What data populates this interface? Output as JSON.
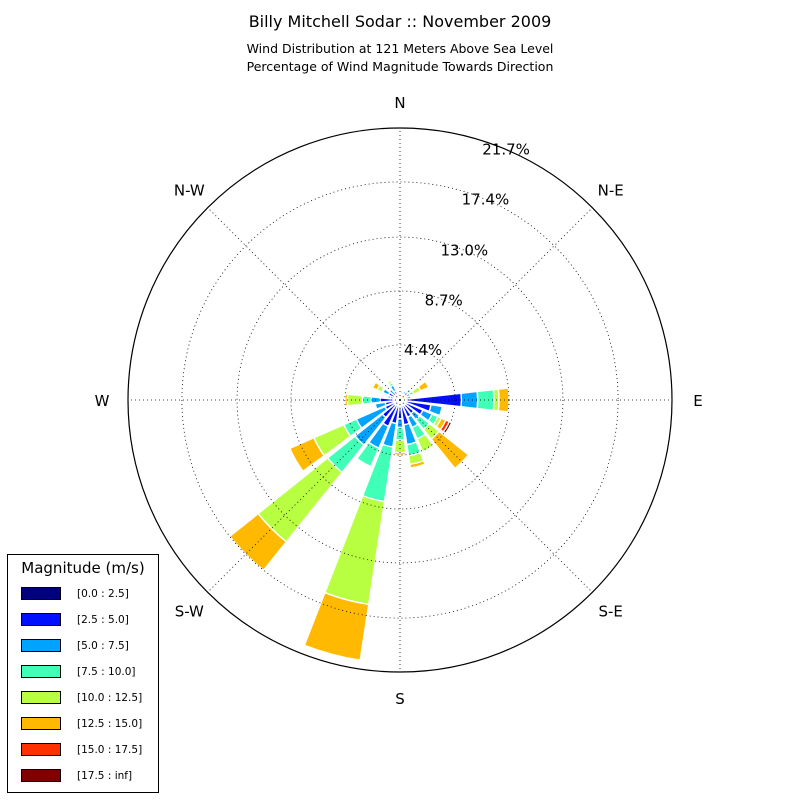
{
  "chart_data": {
    "type": "windrose",
    "title": "Billy Mitchell Sodar :: November 2009",
    "subtitle_lines": [
      "Wind Distribution at 121 Meters Above Sea Level",
      "Percentage of Wind Magnitude Towards Direction"
    ],
    "direction_labels": [
      "N",
      "N-E",
      "E",
      "S-E",
      "S",
      "S-W",
      "W",
      "N-W"
    ],
    "radial_ticks": [
      4.4,
      8.7,
      13.0,
      17.4,
      21.7
    ],
    "radial_tick_labels": [
      "4.4%",
      "8.7%",
      "13.0%",
      "17.4%",
      "21.7%"
    ],
    "radial_max": 21.7,
    "grid": true,
    "legend": {
      "title": "Magnitude (m/s)",
      "placement": "lower-left",
      "bins": [
        {
          "label": "[0.0 : 2.5]",
          "color": "#000080"
        },
        {
          "label": "[2.5 : 5.0]",
          "color": "#0010ff"
        },
        {
          "label": "[5.0 : 7.5]",
          "color": "#00a4ff"
        },
        {
          "label": "[7.5 : 10.0]",
          "color": "#40ffb7"
        },
        {
          "label": "[10.0 : 12.5]",
          "color": "#b7ff40"
        },
        {
          "label": "[12.5 : 15.0]",
          "color": "#ffb900"
        },
        {
          "label": "[15.0 : 17.5]",
          "color": "#ff3000"
        },
        {
          "label": "[17.5 : inf]",
          "color": "#800000"
        }
      ]
    },
    "sectors": [
      {
        "direction_deg": 0,
        "cumulative": [
          0.1,
          0.3,
          0.6,
          0.7,
          0.7,
          0.7,
          0.7,
          0.7
        ]
      },
      {
        "direction_deg": 15,
        "cumulative": [
          0.1,
          0.4,
          0.7,
          0.8,
          0.8,
          0.8,
          0.8,
          0.8
        ]
      },
      {
        "direction_deg": 30,
        "cumulative": [
          0.1,
          0.4,
          0.8,
          0.9,
          0.9,
          0.9,
          0.9,
          0.9
        ]
      },
      {
        "direction_deg": 45,
        "cumulative": [
          0.1,
          0.4,
          0.8,
          1.1,
          1.1,
          1.1,
          1.1,
          1.1
        ]
      },
      {
        "direction_deg": 60,
        "cumulative": [
          0.1,
          0.6,
          0.9,
          1.2,
          1.8,
          2.5,
          2.5,
          2.5
        ]
      },
      {
        "direction_deg": 75,
        "cumulative": [
          0.1,
          0.5,
          0.9,
          0.9,
          0.9,
          0.9,
          0.9,
          0.9
        ]
      },
      {
        "direction_deg": 90,
        "cumulative": [
          0.2,
          4.9,
          6.2,
          7.5,
          7.9,
          8.7,
          8.7,
          8.7
        ]
      },
      {
        "direction_deg": 105,
        "cumulative": [
          0.2,
          2.5,
          3.4,
          3.4,
          3.4,
          3.4,
          3.4,
          3.4
        ]
      },
      {
        "direction_deg": 120,
        "cumulative": [
          0.1,
          2.0,
          2.8,
          3.3,
          3.6,
          4.0,
          4.3,
          4.5
        ]
      },
      {
        "direction_deg": 135,
        "cumulative": [
          0.1,
          1.4,
          2.0,
          3.0,
          4.0,
          7.0,
          7.0,
          7.0
        ]
      },
      {
        "direction_deg": 150,
        "cumulative": [
          0.1,
          1.5,
          2.4,
          3.4,
          4.5,
          4.5,
          4.5,
          4.5
        ]
      },
      {
        "direction_deg": 165,
        "cumulative": [
          0.1,
          2.0,
          3.6,
          4.5,
          5.2,
          5.5,
          5.6,
          5.6
        ]
      },
      {
        "direction_deg": 180,
        "cumulative": [
          0.1,
          1.5,
          2.2,
          3.2,
          4.2,
          4.4,
          4.4,
          4.4
        ]
      },
      {
        "direction_deg": 195,
        "cumulative": [
          0.1,
          1.9,
          3.8,
          8.2,
          16.5,
          21.0,
          21.0,
          21.0
        ]
      },
      {
        "direction_deg": 210,
        "cumulative": [
          0.1,
          2.3,
          4.2,
          5.8,
          5.8,
          5.8,
          5.8,
          5.8
        ]
      },
      {
        "direction_deg": 225,
        "cumulative": [
          0.1,
          1.8,
          4.6,
          7.4,
          14.5,
          17.4,
          17.4,
          17.4
        ]
      },
      {
        "direction_deg": 240,
        "cumulative": [
          0.1,
          1.3,
          3.8,
          4.9,
          7.5,
          9.6,
          9.6,
          9.6
        ]
      },
      {
        "direction_deg": 255,
        "cumulative": [
          0.1,
          1.2,
          2.0,
          2.0,
          2.0,
          2.0,
          2.0,
          2.0
        ]
      },
      {
        "direction_deg": 270,
        "cumulative": [
          0.1,
          1.6,
          2.3,
          3.0,
          4.2,
          4.4,
          4.5,
          4.5
        ]
      },
      {
        "direction_deg": 285,
        "cumulative": [
          0.1,
          0.8,
          1.0,
          1.0,
          1.0,
          1.0,
          1.0,
          1.0
        ]
      },
      {
        "direction_deg": 300,
        "cumulative": [
          0.1,
          1.0,
          1.5,
          1.6,
          2.0,
          2.4,
          2.4,
          2.4
        ]
      },
      {
        "direction_deg": 315,
        "cumulative": [
          0.1,
          0.7,
          1.0,
          1.0,
          1.0,
          1.0,
          1.0,
          1.0
        ]
      },
      {
        "direction_deg": 330,
        "cumulative": [
          0.1,
          0.8,
          1.3,
          1.5,
          1.7,
          1.7,
          1.7,
          1.7
        ]
      },
      {
        "direction_deg": 345,
        "cumulative": [
          0.1,
          0.2,
          0.5,
          0.5,
          0.5,
          0.5,
          0.5,
          0.5
        ]
      }
    ]
  }
}
